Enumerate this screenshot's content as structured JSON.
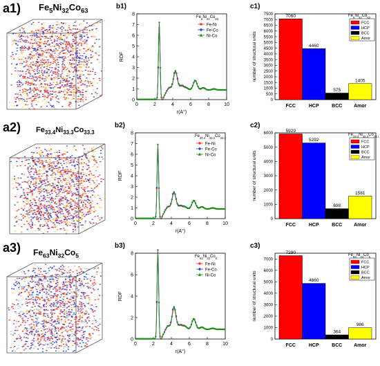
{
  "rows": [
    {
      "cube_label": "a1)",
      "rdf_label": "b1)",
      "bar_label": "c1)",
      "composition": "Fe5Ni32Co63",
      "comp_parts": [
        [
          "Fe",
          ""
        ],
        [
          "5",
          "sub"
        ],
        [
          "Ni",
          ""
        ],
        [
          "32",
          "sub"
        ],
        [
          "Co",
          ""
        ],
        [
          "63",
          "sub"
        ]
      ],
      "rdf_legend_title": [
        [
          "Fe",
          ""
        ],
        [
          "5",
          "sub"
        ],
        [
          "Ni",
          ""
        ],
        [
          "32",
          "sub"
        ],
        [
          "Co",
          ""
        ],
        [
          "63",
          "sub"
        ]
      ],
      "bar_legend_title": [
        [
          "Fe",
          ""
        ],
        [
          "5",
          "sub"
        ],
        [
          "Ni",
          ""
        ],
        [
          "32",
          "sub"
        ],
        [
          "Co",
          ""
        ],
        [
          "63",
          "sub"
        ]
      ]
    },
    {
      "cube_label": "a2)",
      "rdf_label": "b2)",
      "bar_label": "c2)",
      "composition": "Fe33.4Ni33.3Co33.3",
      "comp_parts": [
        [
          "Fe",
          ""
        ],
        [
          "33.4",
          "sub"
        ],
        [
          "Ni",
          ""
        ],
        [
          "33.3",
          "sub"
        ],
        [
          "Co",
          ""
        ],
        [
          "33.3",
          "sub"
        ]
      ],
      "rdf_legend_title": [
        [
          "Fe",
          ""
        ],
        [
          "33.4",
          "sub"
        ],
        [
          "Ni",
          ""
        ],
        [
          "33.3",
          "sub"
        ],
        [
          "Co",
          ""
        ],
        [
          "33.3",
          "sub"
        ]
      ],
      "bar_legend_title": [
        [
          "Fe",
          ""
        ],
        [
          "33.4",
          "sub"
        ],
        [
          "Ni",
          ""
        ],
        [
          "33.3",
          "sub"
        ],
        [
          "Co",
          ""
        ],
        [
          "33.3",
          "sub"
        ]
      ]
    },
    {
      "cube_label": "a3)",
      "rdf_label": "b3)",
      "bar_label": "c3)",
      "composition": "Fe63Ni32Co5",
      "comp_parts": [
        [
          "Fe",
          ""
        ],
        [
          "63",
          "sub"
        ],
        [
          "Ni",
          ""
        ],
        [
          "32",
          "sub"
        ],
        [
          "Co",
          ""
        ],
        [
          "5",
          "sub"
        ]
      ],
      "rdf_legend_title": [
        [
          "Fe",
          ""
        ],
        [
          "63",
          "sub"
        ],
        [
          "Ni",
          ""
        ],
        [
          "32",
          "sub"
        ],
        [
          "Co",
          ""
        ],
        [
          "5",
          "sub"
        ]
      ],
      "bar_legend_title": [
        [
          "Fe",
          ""
        ],
        [
          "63",
          "sub"
        ],
        [
          "Ni",
          ""
        ],
        [
          "32",
          "sub"
        ],
        [
          "Co",
          ""
        ],
        [
          "5",
          "sub"
        ]
      ]
    }
  ],
  "colors": {
    "fcc": "#ff0000",
    "hcp": "#0000ff",
    "bcc": "#000000",
    "amor": "#ffff00",
    "fe_ni": "#ff3333",
    "fe_co": "#2244cc",
    "ni_co": "#1a8a1a"
  },
  "chart_data": [
    {
      "type": "line",
      "panel": "b1)",
      "xlabel": "r(A°)",
      "ylabel": "RDF",
      "xlim": [
        0,
        10
      ],
      "ylim": [
        0,
        8
      ],
      "xticks": [
        "0",
        "2",
        "4",
        "6",
        "8",
        "10"
      ],
      "yticks": [
        "0",
        "1",
        "2",
        "3",
        "4",
        "5",
        "6",
        "7",
        "8"
      ],
      "series": [
        {
          "name": "Fe-Ni",
          "marker": "circle"
        },
        {
          "name": "Fe-Co",
          "marker": "diamond"
        },
        {
          "name": "Ni-Co",
          "marker": "triangle"
        }
      ],
      "peaks": [
        [
          2.5,
          7.2
        ],
        [
          3.6,
          1.3
        ],
        [
          4.3,
          2.8
        ],
        [
          5.0,
          1.4
        ],
        [
          5.5,
          1.2
        ],
        [
          6.5,
          1.9
        ],
        [
          7.4,
          1.2
        ],
        [
          8.6,
          1.1
        ]
      ]
    },
    {
      "type": "bar",
      "panel": "c1)",
      "categories": [
        "FCC",
        "HCP",
        "BCC",
        "Amor"
      ],
      "values": [
        7060,
        4460,
        575,
        1405
      ],
      "value_labels": [
        "7060",
        "4460",
        "575",
        "1405"
      ],
      "ylabel": "number of structural units",
      "ylim": [
        0,
        7500
      ],
      "yticks": [
        "0",
        "500",
        "1000",
        "1500",
        "2000",
        "2500",
        "3000",
        "3500",
        "4000",
        "4500",
        "5000",
        "5500",
        "6000",
        "6500",
        "7000",
        "7500"
      ],
      "legend": [
        "FCC",
        "HCP",
        "BCC",
        "Amor"
      ]
    },
    {
      "type": "line",
      "panel": "b2)",
      "xlabel": "r(A°)",
      "ylabel": "RDF",
      "xlim": [
        0,
        10
      ],
      "ylim": [
        0,
        8
      ],
      "xticks": [
        "0",
        "2",
        "4",
        "6",
        "8",
        "10"
      ],
      "yticks": [
        "0",
        "1",
        "2",
        "3",
        "4",
        "5",
        "6",
        "7",
        "8"
      ],
      "series": [
        {
          "name": "Fe-Ni",
          "marker": "circle"
        },
        {
          "name": "Fe-Co",
          "marker": "diamond"
        },
        {
          "name": "Ni-Co",
          "marker": "triangle"
        }
      ],
      "peaks": [
        [
          2.5,
          6.9
        ],
        [
          3.6,
          1.3
        ],
        [
          4.3,
          2.6
        ],
        [
          5.0,
          1.3
        ],
        [
          5.5,
          1.2
        ],
        [
          6.5,
          1.8
        ],
        [
          7.4,
          1.2
        ],
        [
          8.6,
          1.1
        ]
      ]
    },
    {
      "type": "bar",
      "panel": "c2)",
      "categories": [
        "FCC",
        "HCP",
        "BCC",
        "Amor"
      ],
      "values": [
        5929,
        5292,
        698,
        1581
      ],
      "value_labels": [
        "5929",
        "5292",
        "698",
        "1581"
      ],
      "ylabel": "number of structural units",
      "ylim": [
        0,
        6000
      ],
      "yticks": [
        "0",
        "1000",
        "2000",
        "3000",
        "4000",
        "5000",
        "6000"
      ],
      "legend": [
        "FCC",
        "HCP",
        "BCC",
        "Amor"
      ]
    },
    {
      "type": "line",
      "panel": "b3)",
      "xlabel": "r(A°)",
      "ylabel": "RDF",
      "xlim": [
        0,
        10
      ],
      "ylim": [
        0,
        8
      ],
      "xticks": [
        "0",
        "2",
        "4",
        "6",
        "8",
        "10"
      ],
      "yticks": [
        "0",
        "2",
        "4",
        "6",
        "8"
      ],
      "series": [
        {
          "name": "Fe-Ni",
          "marker": "circle"
        },
        {
          "name": "Fe-Co",
          "marker": "diamond"
        },
        {
          "name": "Ni-Co",
          "marker": "triangle"
        }
      ],
      "peaks": [
        [
          2.5,
          8.3
        ],
        [
          3.6,
          1.4
        ],
        [
          4.3,
          3.1
        ],
        [
          5.0,
          1.4
        ],
        [
          5.5,
          1.3
        ],
        [
          6.5,
          2.0
        ],
        [
          7.4,
          1.2
        ],
        [
          8.6,
          1.1
        ]
      ]
    },
    {
      "type": "bar",
      "panel": "c3)",
      "categories": [
        "FCC",
        "HCP",
        "BCC",
        "Amor"
      ],
      "values": [
        7290,
        4860,
        364,
        986
      ],
      "value_labels": [
        "7290",
        "4860",
        "364",
        "986"
      ],
      "ylabel": "number of structural units",
      "ylim": [
        0,
        7500
      ],
      "yticks": [
        "0",
        "1000",
        "2000",
        "3000",
        "4000",
        "5000",
        "6000",
        "7000"
      ],
      "legend": [
        "FCC",
        "HCP",
        "BCC",
        "Amor"
      ]
    }
  ]
}
